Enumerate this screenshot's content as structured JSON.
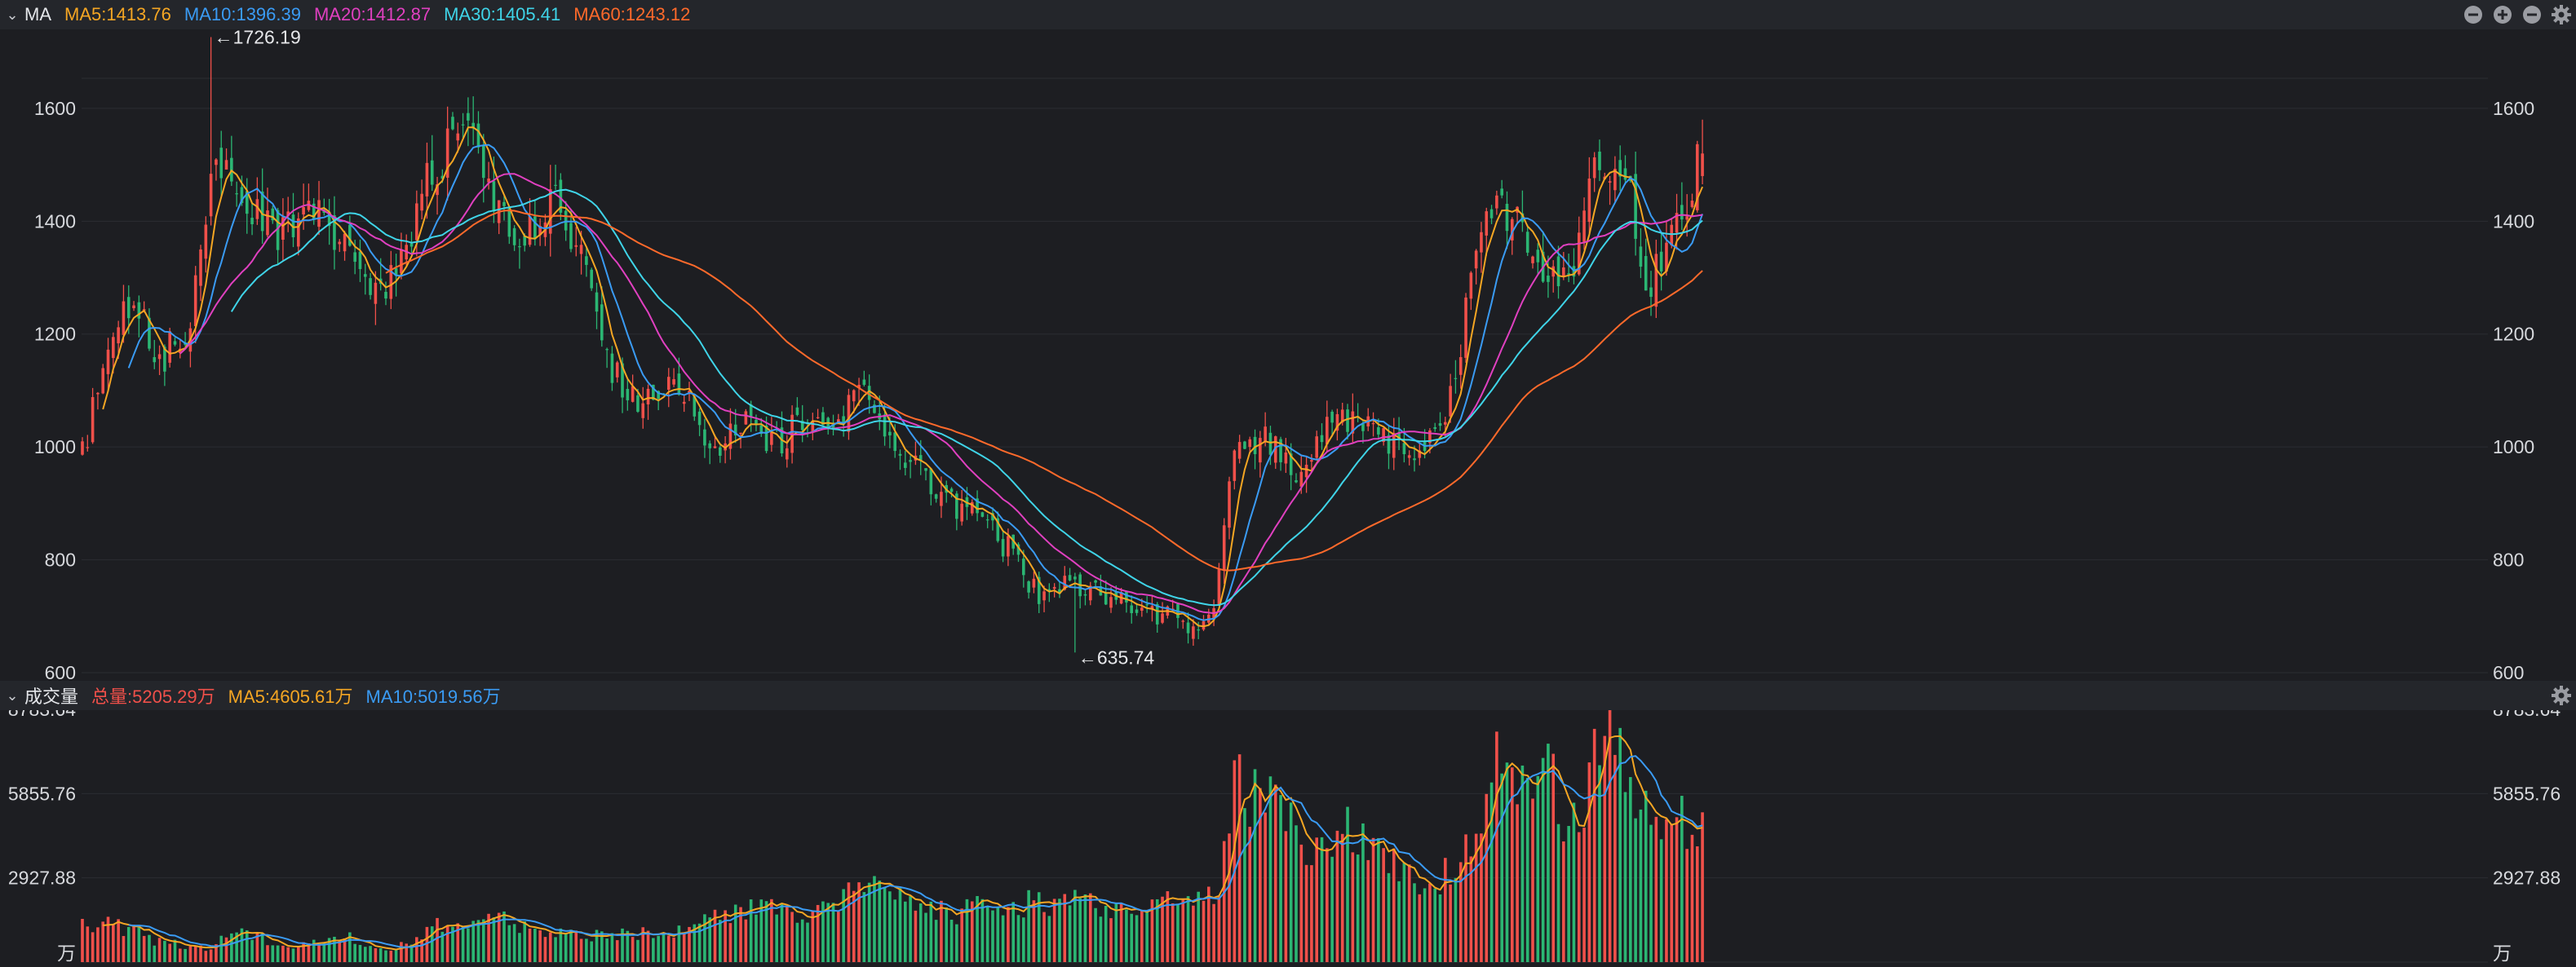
{
  "price_header": {
    "title": "MA",
    "indicators": [
      {
        "label": "MA5:1413.76",
        "color": "#f5a623"
      },
      {
        "label": "MA10:1396.39",
        "color": "#3a9bf4"
      },
      {
        "label": "MA20:1412.87",
        "color": "#e040c0"
      },
      {
        "label": "MA30:1405.41",
        "color": "#3fd4e8"
      },
      {
        "label": "MA60:1243.12",
        "color": "#ff6a2b"
      }
    ],
    "icons": [
      "minus-circle-icon",
      "plus-circle-icon",
      "minus-circle-icon",
      "gear-icon"
    ]
  },
  "volume_header": {
    "title": "成交量",
    "indicators": [
      {
        "label": "总量:5205.29万",
        "color": "#f0504a"
      },
      {
        "label": "MA5:4605.61万",
        "color": "#f5a623"
      },
      {
        "label": "MA10:5019.56万",
        "color": "#3a9bf4"
      }
    ],
    "icons": [
      "gear-icon"
    ]
  },
  "colors": {
    "up": "#f0504a",
    "down": "#2bb673",
    "background": "#1d1e22",
    "header": "#24262b",
    "grid": "#2b2d33"
  },
  "chart_data": [
    {
      "type": "candlestick",
      "ylim": [
        600,
        1740
      ],
      "yticks": [
        600,
        800,
        1000,
        1200,
        1400,
        1600
      ],
      "ytick_labels": [
        "600",
        "800",
        "1000",
        "1200",
        "1400",
        "1600"
      ],
      "annotations": [
        {
          "label": "←1726.19",
          "bar_index": 25,
          "value": 1726.19,
          "kind": "high"
        },
        {
          "label": "←635.74",
          "bar_index": 193,
          "value": 635.74,
          "kind": "low"
        }
      ],
      "close_series": [
        {
          "name": "close_path_anchor",
          "points": [
            [
              0,
              1010
            ],
            [
              5,
              1180
            ],
            [
              10,
              1270
            ],
            [
              15,
              1160
            ],
            [
              20,
              1200
            ],
            [
              26,
              1490
            ],
            [
              32,
              1430
            ],
            [
              38,
              1380
            ],
            [
              44,
              1410
            ],
            [
              50,
              1380
            ],
            [
              56,
              1260
            ],
            [
              62,
              1330
            ],
            [
              68,
              1480
            ],
            [
              74,
              1580
            ],
            [
              80,
              1430
            ],
            [
              86,
              1380
            ],
            [
              92,
              1430
            ],
            [
              98,
              1320
            ],
            [
              104,
              1120
            ],
            [
              110,
              1080
            ],
            [
              116,
              1120
            ],
            [
              122,
              980
            ],
            [
              128,
              1040
            ],
            [
              134,
              1000
            ],
            [
              140,
              1050
            ],
            [
              146,
              1010
            ],
            [
              150,
              1110
            ],
            [
              156,
              1030
            ],
            [
              162,
              960
            ],
            [
              168,
              900
            ],
            [
              174,
              880
            ],
            [
              180,
              820
            ],
            [
              186,
              740
            ],
            [
              192,
              760
            ],
            [
              198,
              740
            ],
            [
              204,
              720
            ],
            [
              210,
              700
            ],
            [
              216,
              680
            ],
            [
              220,
              720
            ],
            [
              224,
              1000
            ],
            [
              230,
              1010
            ],
            [
              236,
              960
            ],
            [
              242,
              1040
            ],
            [
              248,
              1060
            ],
            [
              254,
              1010
            ],
            [
              260,
              990
            ],
            [
              266,
              1080
            ],
            [
              270,
              1300
            ],
            [
              274,
              1440
            ],
            [
              280,
              1390
            ],
            [
              284,
              1300
            ],
            [
              290,
              1330
            ],
            [
              294,
              1500
            ],
            [
              300,
              1470
            ],
            [
              304,
              1290
            ],
            [
              310,
              1380
            ],
            [
              315,
              1520
            ]
          ]
        }
      ],
      "last_bar": {
        "close": 1520,
        "high": 1580
      }
    },
    {
      "type": "bar",
      "name": "成交量",
      "ylim": [
        0,
        8783.64
      ],
      "yticks": [
        0,
        2927.88,
        5855.76,
        8783.64
      ],
      "ytick_labels": [
        "万",
        "2927.88",
        "5855.76",
        "8783.64"
      ],
      "unit": "万",
      "volume_anchors": [
        [
          0,
          1400
        ],
        [
          8,
          1200
        ],
        [
          16,
          650
        ],
        [
          24,
          500
        ],
        [
          30,
          1100
        ],
        [
          40,
          550
        ],
        [
          50,
          900
        ],
        [
          60,
          500
        ],
        [
          72,
          1400
        ],
        [
          80,
          1500
        ],
        [
          90,
          1100
        ],
        [
          100,
          900
        ],
        [
          112,
          1000
        ],
        [
          122,
          1500
        ],
        [
          132,
          1800
        ],
        [
          140,
          1600
        ],
        [
          150,
          2500
        ],
        [
          158,
          2400
        ],
        [
          168,
          1700
        ],
        [
          180,
          2000
        ],
        [
          190,
          2100
        ],
        [
          200,
          1900
        ],
        [
          210,
          2300
        ],
        [
          220,
          2200
        ],
        [
          224,
          6000
        ],
        [
          230,
          5400
        ],
        [
          240,
          3600
        ],
        [
          246,
          4900
        ],
        [
          254,
          3300
        ],
        [
          262,
          2500
        ],
        [
          270,
          4500
        ],
        [
          276,
          6800
        ],
        [
          284,
          6300
        ],
        [
          290,
          4600
        ],
        [
          296,
          7800
        ],
        [
          302,
          5800
        ],
        [
          310,
          4800
        ],
        [
          315,
          5205.29
        ]
      ]
    }
  ]
}
